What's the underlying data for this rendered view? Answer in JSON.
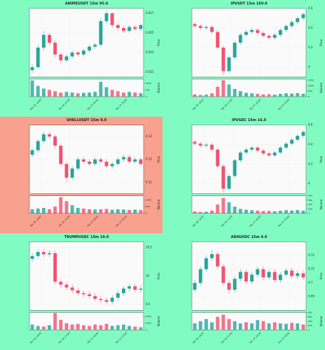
{
  "chart_data": [
    {
      "type": "candlestick",
      "title": "ANIMEUSDT 15m 95.0",
      "background": "#80fcc2",
      "up_color": "#26a69a",
      "down_color": "#ef5370",
      "ylabel": "Price",
      "vlabel": "Volume",
      "open": [
        0.0212,
        0.0215,
        0.0235,
        0.0248,
        0.024,
        0.0228,
        0.0222,
        0.0226,
        0.023,
        0.0228,
        0.0232,
        0.0236,
        0.0238,
        0.0262,
        0.027,
        0.0258,
        0.0255,
        0.0252,
        0.0256,
        0.0254
      ],
      "high": [
        0.0218,
        0.0238,
        0.0252,
        0.025,
        0.0243,
        0.023,
        0.0228,
        0.0232,
        0.0232,
        0.0234,
        0.0238,
        0.024,
        0.0265,
        0.0273,
        0.0271,
        0.026,
        0.0257,
        0.0258,
        0.0258,
        0.026
      ],
      "low": [
        0.0209,
        0.0213,
        0.0232,
        0.0237,
        0.0225,
        0.0219,
        0.022,
        0.0224,
        0.0226,
        0.0226,
        0.023,
        0.0234,
        0.0236,
        0.0259,
        0.0255,
        0.0252,
        0.025,
        0.025,
        0.0252,
        0.0252
      ],
      "close": [
        0.0215,
        0.0235,
        0.0248,
        0.024,
        0.0228,
        0.0222,
        0.0226,
        0.023,
        0.0228,
        0.0232,
        0.0236,
        0.0238,
        0.0262,
        0.027,
        0.0258,
        0.0255,
        0.0252,
        0.0256,
        0.0254,
        0.0258
      ],
      "volume": [
        1200,
        800,
        600,
        500,
        400,
        300,
        350,
        300,
        250,
        280,
        300,
        350,
        1100,
        700,
        500,
        400,
        300,
        350,
        300,
        250
      ],
      "ylim": [
        0.0205,
        0.0275
      ],
      "yticks": [
        0.021,
        0.023,
        0.025,
        0.027
      ],
      "vlim": [
        0,
        1300
      ],
      "vticks": [
        0,
        500,
        1000
      ],
      "xlim": [
        0,
        20
      ],
      "xticks": [
        {
          "value": 2,
          "label": "Mar 26, 18:00"
        },
        {
          "value": 7,
          "label": "Mar 26, 21:00"
        },
        {
          "value": 12,
          "label": "Mar 27, 00:00"
        },
        {
          "value": 17,
          "label": "Mar 27, 03:00"
        }
      ]
    },
    {
      "type": "candlestick",
      "title": "IPUSDT 15m 169.0",
      "background": "#80fcc2",
      "up_color": "#26a69a",
      "down_color": "#ef5370",
      "ylabel": "Price",
      "vlabel": "Volume",
      "open": [
        4.44,
        4.42,
        4.4,
        4.41,
        4.36,
        4.2,
        3.96,
        4.1,
        4.25,
        4.33,
        4.36,
        4.38,
        4.35,
        4.32,
        4.3,
        4.33,
        4.38,
        4.42,
        4.46,
        4.5
      ],
      "high": [
        4.46,
        4.44,
        4.43,
        4.43,
        4.38,
        4.22,
        4.12,
        4.27,
        4.35,
        4.38,
        4.4,
        4.4,
        4.37,
        4.34,
        4.35,
        4.4,
        4.44,
        4.48,
        4.52,
        4.56
      ],
      "low": [
        4.4,
        4.38,
        4.38,
        4.34,
        4.18,
        3.92,
        3.94,
        4.08,
        4.23,
        4.31,
        4.34,
        4.33,
        4.3,
        4.28,
        4.28,
        4.31,
        4.36,
        4.4,
        4.44,
        4.48
      ],
      "close": [
        4.42,
        4.4,
        4.41,
        4.36,
        4.2,
        3.96,
        4.1,
        4.25,
        4.33,
        4.36,
        4.38,
        4.35,
        4.32,
        4.3,
        4.33,
        4.38,
        4.42,
        4.46,
        4.5,
        4.54
      ],
      "volume": [
        200,
        150,
        180,
        300,
        900,
        1500,
        1100,
        700,
        500,
        350,
        300,
        250,
        200,
        220,
        180,
        250,
        300,
        280,
        320,
        260
      ],
      "ylim": [
        3.9,
        4.6
      ],
      "yticks": [
        4.0,
        4.2,
        4.4,
        4.6
      ],
      "vlim": [
        0,
        1600
      ],
      "vticks": [
        0,
        500,
        1000,
        1500
      ],
      "xlim": [
        0,
        20
      ],
      "xticks": [
        {
          "value": 2,
          "label": "Mar 26, 18:00"
        },
        {
          "value": 7,
          "label": "Mar 26, 21:00"
        },
        {
          "value": 12,
          "label": "Mar 27, 00:00"
        },
        {
          "value": 17,
          "label": "Mar 27, 03:00"
        }
      ]
    },
    {
      "type": "candlestick",
      "title": "SHELLUSDT 15m 9.0",
      "background": "#f7a18e",
      "up_color": "#26a69a",
      "down_color": "#ef5370",
      "ylabel": "Price",
      "vlabel": "Volume",
      "open": [
        0.122,
        0.124,
        0.128,
        0.131,
        0.13,
        0.126,
        0.118,
        0.112,
        0.116,
        0.12,
        0.119,
        0.118,
        0.12,
        0.119,
        0.117,
        0.118,
        0.12,
        0.121,
        0.119,
        0.12
      ],
      "high": [
        0.125,
        0.129,
        0.132,
        0.132,
        0.131,
        0.127,
        0.119,
        0.117,
        0.121,
        0.121,
        0.12,
        0.121,
        0.121,
        0.12,
        0.119,
        0.121,
        0.122,
        0.122,
        0.121,
        0.121
      ],
      "low": [
        0.121,
        0.123,
        0.127,
        0.129,
        0.125,
        0.117,
        0.11,
        0.111,
        0.115,
        0.118,
        0.117,
        0.117,
        0.118,
        0.116,
        0.116,
        0.117,
        0.119,
        0.118,
        0.118,
        0.117
      ],
      "close": [
        0.124,
        0.128,
        0.131,
        0.13,
        0.126,
        0.118,
        0.112,
        0.116,
        0.12,
        0.119,
        0.118,
        0.12,
        0.119,
        0.117,
        0.118,
        0.12,
        0.121,
        0.119,
        0.12,
        0.118
      ],
      "volume": [
        300,
        350,
        400,
        300,
        500,
        1200,
        900,
        600,
        400,
        350,
        300,
        280,
        300,
        320,
        260,
        300,
        280,
        250,
        270,
        240
      ],
      "ylim": [
        0.105,
        0.135
      ],
      "yticks": [
        0.11,
        0.12,
        0.13
      ],
      "vlim": [
        0,
        1300
      ],
      "vticks": [
        0,
        500,
        1000
      ],
      "xlim": [
        0,
        20
      ],
      "xticks": [
        {
          "value": 2,
          "label": "Mar 26, 18:00"
        },
        {
          "value": 7,
          "label": "Mar 26, 21:00"
        },
        {
          "value": 12,
          "label": "Mar 27, 00:00"
        },
        {
          "value": 17,
          "label": "Mar 27, 03:00"
        }
      ]
    },
    {
      "type": "candlestick",
      "title": "IPUSDC 15m 16.0",
      "background": "#80fcc2",
      "up_color": "#26a69a",
      "down_color": "#ef5370",
      "ylabel": "Price",
      "vlabel": "Volume",
      "open": [
        4.43,
        4.41,
        4.39,
        4.4,
        4.35,
        4.18,
        3.95,
        4.08,
        4.24,
        4.32,
        4.35,
        4.37,
        4.34,
        4.31,
        4.29,
        4.32,
        4.37,
        4.41,
        4.45,
        4.49
      ],
      "high": [
        4.45,
        4.43,
        4.42,
        4.42,
        4.37,
        4.2,
        4.1,
        4.26,
        4.34,
        4.37,
        4.39,
        4.39,
        4.36,
        4.33,
        4.34,
        4.39,
        4.43,
        4.47,
        4.51,
        4.55
      ],
      "low": [
        4.39,
        4.37,
        4.37,
        4.33,
        4.16,
        3.91,
        3.93,
        4.06,
        4.22,
        4.3,
        4.33,
        4.32,
        4.29,
        4.27,
        4.27,
        4.3,
        4.35,
        4.39,
        4.43,
        4.47
      ],
      "close": [
        4.41,
        4.39,
        4.4,
        4.35,
        4.18,
        3.95,
        4.08,
        4.24,
        4.32,
        4.35,
        4.37,
        4.34,
        4.31,
        4.29,
        4.32,
        4.37,
        4.41,
        4.45,
        4.49,
        4.53
      ],
      "volume": [
        40,
        30,
        35,
        60,
        200,
        350,
        250,
        150,
        100,
        80,
        70,
        60,
        50,
        55,
        45,
        60,
        70,
        65,
        75,
        60
      ],
      "ylim": [
        3.9,
        4.6
      ],
      "yticks": [
        4.0,
        4.2,
        4.4,
        4.6
      ],
      "vlim": [
        0,
        400
      ],
      "vticks": [
        0,
        100,
        200,
        300,
        400
      ],
      "xlim": [
        0,
        20
      ],
      "xticks": [
        {
          "value": 2,
          "label": "Mar 26, 18:00"
        },
        {
          "value": 7,
          "label": "Mar 26, 21:00"
        },
        {
          "value": 12,
          "label": "Mar 27, 00:00"
        },
        {
          "value": 17,
          "label": "Mar 27, 03:00"
        }
      ]
    },
    {
      "type": "candlestick",
      "title": "TRUMPUSDC 15m 10.0",
      "background": "#80fcc2",
      "up_color": "#26a69a",
      "down_color": "#ef5370",
      "ylabel": "Price",
      "vlabel": "Volume",
      "open": [
        10.3,
        10.35,
        10.42,
        10.38,
        10.4,
        9.9,
        9.85,
        9.8,
        9.75,
        9.7,
        9.68,
        9.65,
        9.6,
        9.58,
        9.55,
        9.62,
        9.7,
        9.78,
        9.82,
        9.76
      ],
      "high": [
        10.4,
        10.47,
        10.47,
        10.45,
        10.45,
        9.95,
        9.9,
        9.85,
        9.8,
        9.75,
        9.73,
        9.7,
        9.65,
        9.63,
        9.67,
        9.75,
        9.83,
        9.87,
        9.87,
        9.83
      ],
      "low": [
        10.25,
        10.3,
        10.33,
        10.33,
        9.85,
        9.8,
        9.75,
        9.7,
        9.65,
        9.63,
        9.6,
        9.55,
        9.53,
        9.5,
        9.5,
        9.57,
        9.65,
        9.73,
        9.71,
        9.71
      ],
      "close": [
        10.35,
        10.42,
        10.38,
        10.4,
        9.9,
        9.85,
        9.8,
        9.75,
        9.7,
        9.68,
        9.65,
        9.6,
        9.58,
        9.55,
        9.62,
        9.7,
        9.78,
        9.82,
        9.76,
        9.78
      ],
      "volume": [
        800,
        600,
        500,
        700,
        2500,
        1500,
        1000,
        800,
        900,
        700,
        600,
        800,
        700,
        900,
        600,
        700,
        800,
        600,
        500,
        400
      ],
      "ylim": [
        9.4,
        10.6
      ],
      "yticks": [
        9.5,
        10.0,
        10.5
      ],
      "vlim": [
        0,
        2600
      ],
      "vticks": [
        0,
        1000,
        2000
      ],
      "xlim": [
        0,
        20
      ],
      "xticks": [
        {
          "value": 2,
          "label": "Mar 26, 18:00"
        },
        {
          "value": 7,
          "label": "Mar 26, 21:00"
        },
        {
          "value": 12,
          "label": "Mar 27, 00:00"
        },
        {
          "value": 17,
          "label": "Mar 27, 03:00"
        }
      ]
    },
    {
      "type": "candlestick",
      "title": "ADAUSDC 15m 9.0",
      "background": "#80fcc2",
      "up_color": "#26a69a",
      "down_color": "#ef5370",
      "ylabel": "Price",
      "vlabel": "Volume",
      "open": [
        0.695,
        0.7,
        0.71,
        0.718,
        0.721,
        0.712,
        0.7,
        0.695,
        0.703,
        0.708,
        0.701,
        0.706,
        0.71,
        0.704,
        0.708,
        0.702,
        0.706,
        0.709,
        0.705,
        0.707
      ],
      "high": [
        0.702,
        0.712,
        0.72,
        0.724,
        0.723,
        0.714,
        0.702,
        0.705,
        0.71,
        0.71,
        0.708,
        0.712,
        0.712,
        0.71,
        0.71,
        0.708,
        0.711,
        0.711,
        0.709,
        0.709
      ],
      "low": [
        0.693,
        0.698,
        0.708,
        0.716,
        0.71,
        0.698,
        0.692,
        0.693,
        0.701,
        0.699,
        0.699,
        0.704,
        0.702,
        0.702,
        0.7,
        0.7,
        0.704,
        0.703,
        0.703,
        0.702
      ],
      "close": [
        0.7,
        0.71,
        0.718,
        0.721,
        0.712,
        0.7,
        0.695,
        0.703,
        0.708,
        0.701,
        0.706,
        0.71,
        0.704,
        0.708,
        0.702,
        0.706,
        0.709,
        0.705,
        0.707,
        0.704
      ],
      "volume": [
        300,
        400,
        500,
        350,
        600,
        700,
        500,
        400,
        300,
        350,
        300,
        450,
        400,
        300,
        350,
        300,
        280,
        320,
        300,
        250
      ],
      "ylim": [
        0.68,
        0.73
      ],
      "yticks": [
        0.69,
        0.7,
        0.71,
        0.72
      ],
      "vlim": [
        0,
        800
      ],
      "vticks": [
        0,
        200,
        400,
        600,
        800
      ],
      "xlim": [
        0,
        20
      ],
      "xticks": [
        {
          "value": 2,
          "label": "Mar 26, 18:00"
        },
        {
          "value": 7,
          "label": "Mar 26, 21:00"
        },
        {
          "value": 12,
          "label": "Mar 27, 00:00"
        },
        {
          "value": 17,
          "label": "Mar 27, 03:00"
        }
      ]
    }
  ]
}
